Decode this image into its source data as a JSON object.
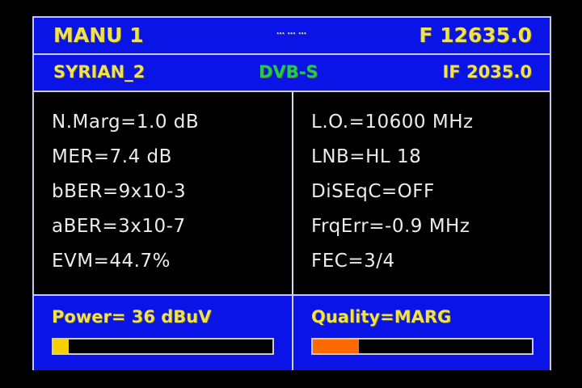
{
  "header": {
    "mode": "MANU 1",
    "indicator": "… … …",
    "frequency": "F 12635.0"
  },
  "subheader": {
    "satellite": "SYRIAN_2",
    "standard": "DVB-S",
    "if_frequency": "IF 2035.0"
  },
  "left_params": [
    "N.Marg=1.0 dB",
    "MER=7.4 dB",
    "bBER=9x10-3",
    "aBER=3x10-7",
    "EVM=44.7%"
  ],
  "right_params": [
    "L.O.=10600 MHz",
    "LNB=HL 18",
    "DiSEqC=OFF",
    "FrqErr=-0.9 MHz",
    "FEC=3/4"
  ],
  "power": {
    "label": "Power=  36 dBuV",
    "level_percent": 7,
    "color": "#f7d000"
  },
  "quality": {
    "label": "Quality=MARG",
    "level_percent": 21,
    "color": "#ff6a00"
  },
  "colors": {
    "panel": "#0a14e6",
    "label_text": "#f2e24a",
    "standard_text": "#22cc44"
  }
}
